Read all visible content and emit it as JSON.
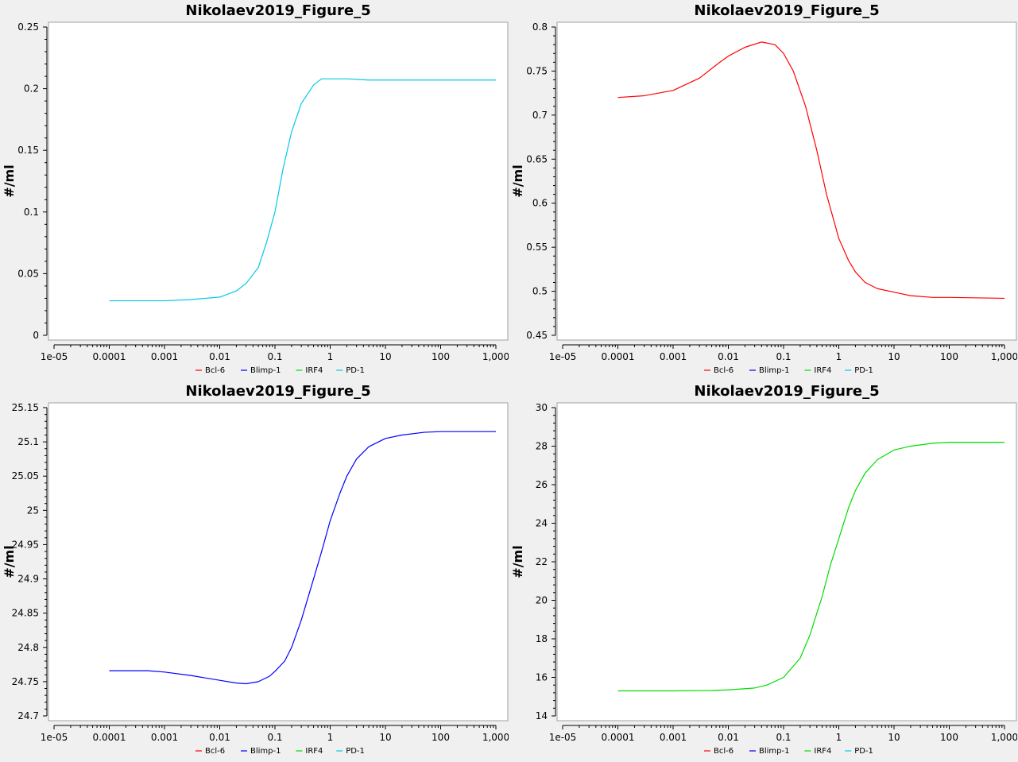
{
  "legend": [
    {
      "name": "Bcl-6",
      "color": "#ff0000"
    },
    {
      "name": "Blimp-1",
      "color": "#0000ff"
    },
    {
      "name": "IRF4",
      "color": "#00dd00"
    },
    {
      "name": "PD-1",
      "color": "#00c8e8"
    }
  ],
  "chart_data": [
    {
      "type": "line",
      "title": "Nikolaev2019_Figure_5",
      "ylabel": "#/ml",
      "xlabel": "",
      "xscale": "log",
      "xlim": [
        1e-05,
        1000
      ],
      "ylim": [
        0,
        0.25
      ],
      "xticks": [
        "1e-05",
        "0.0001",
        "0.001",
        "0.01",
        "0.1",
        "1",
        "10",
        "100",
        "1,000"
      ],
      "yticks": [
        "0",
        "0.05",
        "0.1",
        "0.15",
        "0.2",
        "0.25"
      ],
      "ytick_values": [
        0,
        0.05,
        0.1,
        0.15,
        0.2,
        0.25
      ],
      "legend_position": "bottom",
      "grid": false,
      "series": [
        {
          "name": "PD-1",
          "color": "#00c8e8",
          "points": [
            [
              0.0001,
              0.028
            ],
            [
              0.001,
              0.028
            ],
            [
              0.003,
              0.029
            ],
            [
              0.01,
              0.031
            ],
            [
              0.02,
              0.036
            ],
            [
              0.03,
              0.042
            ],
            [
              0.05,
              0.055
            ],
            [
              0.07,
              0.075
            ],
            [
              0.1,
              0.1
            ],
            [
              0.14,
              0.135
            ],
            [
              0.2,
              0.165
            ],
            [
              0.3,
              0.188
            ],
            [
              0.5,
              0.203
            ],
            [
              0.7,
              0.208
            ],
            [
              1,
              0.208
            ],
            [
              2,
              0.208
            ],
            [
              5,
              0.207
            ],
            [
              10,
              0.207
            ],
            [
              100,
              0.207
            ],
            [
              1000,
              0.207
            ]
          ]
        }
      ]
    },
    {
      "type": "line",
      "title": "Nikolaev2019_Figure_5",
      "ylabel": "#/ml",
      "xlabel": "",
      "xscale": "log",
      "xlim": [
        1e-05,
        1000
      ],
      "ylim": [
        0.45,
        0.8
      ],
      "xticks": [
        "1e-05",
        "0.0001",
        "0.001",
        "0.01",
        "0.1",
        "1",
        "10",
        "100",
        "1,000"
      ],
      "yticks": [
        "0.45",
        "0.5",
        "0.55",
        "0.6",
        "0.65",
        "0.7",
        "0.75",
        "0.8"
      ],
      "ytick_values": [
        0.45,
        0.5,
        0.55,
        0.6,
        0.65,
        0.7,
        0.75,
        0.8
      ],
      "legend_position": "bottom",
      "grid": false,
      "series": [
        {
          "name": "Bcl-6",
          "color": "#ff0000",
          "points": [
            [
              0.0001,
              0.72
            ],
            [
              0.0003,
              0.722
            ],
            [
              0.001,
              0.728
            ],
            [
              0.003,
              0.742
            ],
            [
              0.007,
              0.76
            ],
            [
              0.01,
              0.767
            ],
            [
              0.02,
              0.777
            ],
            [
              0.04,
              0.783
            ],
            [
              0.07,
              0.78
            ],
            [
              0.1,
              0.77
            ],
            [
              0.15,
              0.75
            ],
            [
              0.25,
              0.71
            ],
            [
              0.4,
              0.66
            ],
            [
              0.6,
              0.61
            ],
            [
              1,
              0.56
            ],
            [
              1.5,
              0.535
            ],
            [
              2,
              0.522
            ],
            [
              3,
              0.51
            ],
            [
              5,
              0.503
            ],
            [
              10,
              0.499
            ],
            [
              20,
              0.495
            ],
            [
              50,
              0.493
            ],
            [
              100,
              0.493
            ],
            [
              1000,
              0.492
            ]
          ]
        }
      ]
    },
    {
      "type": "line",
      "title": "Nikolaev2019_Figure_5",
      "ylabel": "#/ml",
      "xlabel": "",
      "xscale": "log",
      "xlim": [
        1e-05,
        1000
      ],
      "ylim": [
        24.7,
        25.15
      ],
      "xticks": [
        "1e-05",
        "0.0001",
        "0.001",
        "0.01",
        "0.1",
        "1",
        "10",
        "100",
        "1,000"
      ],
      "yticks": [
        "24.7",
        "24.75",
        "24.8",
        "24.85",
        "24.9",
        "24.95",
        "25",
        "25.05",
        "25.1",
        "25.15"
      ],
      "ytick_values": [
        24.7,
        24.75,
        24.8,
        24.85,
        24.9,
        24.95,
        25,
        25.05,
        25.1,
        25.15
      ],
      "legend_position": "bottom",
      "grid": false,
      "series": [
        {
          "name": "Blimp-1",
          "color": "#0000ff",
          "points": [
            [
              0.0001,
              24.766
            ],
            [
              0.0005,
              24.766
            ],
            [
              0.001,
              24.764
            ],
            [
              0.003,
              24.759
            ],
            [
              0.01,
              24.752
            ],
            [
              0.02,
              24.748
            ],
            [
              0.03,
              24.747
            ],
            [
              0.05,
              24.75
            ],
            [
              0.08,
              24.758
            ],
            [
              0.1,
              24.765
            ],
            [
              0.15,
              24.78
            ],
            [
              0.2,
              24.8
            ],
            [
              0.3,
              24.84
            ],
            [
              0.5,
              24.9
            ],
            [
              0.7,
              24.94
            ],
            [
              1,
              24.985
            ],
            [
              1.5,
              25.025
            ],
            [
              2,
              25.05
            ],
            [
              3,
              25.075
            ],
            [
              5,
              25.093
            ],
            [
              10,
              25.105
            ],
            [
              20,
              25.11
            ],
            [
              50,
              25.114
            ],
            [
              100,
              25.115
            ],
            [
              1000,
              25.115
            ]
          ]
        }
      ]
    },
    {
      "type": "line",
      "title": "Nikolaev2019_Figure_5",
      "ylabel": "#/ml",
      "xlabel": "",
      "xscale": "log",
      "xlim": [
        1e-05,
        1000
      ],
      "ylim": [
        14,
        30
      ],
      "xticks": [
        "1e-05",
        "0.0001",
        "0.001",
        "0.01",
        "0.1",
        "1",
        "10",
        "100",
        "1,000"
      ],
      "yticks": [
        "14",
        "16",
        "18",
        "20",
        "22",
        "24",
        "26",
        "28",
        "30"
      ],
      "ytick_values": [
        14,
        16,
        18,
        20,
        22,
        24,
        26,
        28,
        30
      ],
      "legend_position": "bottom",
      "grid": false,
      "series": [
        {
          "name": "IRF4",
          "color": "#00dd00",
          "points": [
            [
              0.0001,
              15.3
            ],
            [
              0.001,
              15.3
            ],
            [
              0.005,
              15.32
            ],
            [
              0.01,
              15.35
            ],
            [
              0.03,
              15.45
            ],
            [
              0.05,
              15.6
            ],
            [
              0.1,
              16.0
            ],
            [
              0.2,
              17.0
            ],
            [
              0.3,
              18.2
            ],
            [
              0.5,
              20.2
            ],
            [
              0.7,
              21.8
            ],
            [
              1,
              23.2
            ],
            [
              1.5,
              24.8
            ],
            [
              2,
              25.7
            ],
            [
              3,
              26.6
            ],
            [
              5,
              27.3
            ],
            [
              10,
              27.8
            ],
            [
              20,
              28.0
            ],
            [
              50,
              28.15
            ],
            [
              100,
              28.2
            ],
            [
              1000,
              28.2
            ]
          ]
        }
      ]
    }
  ]
}
